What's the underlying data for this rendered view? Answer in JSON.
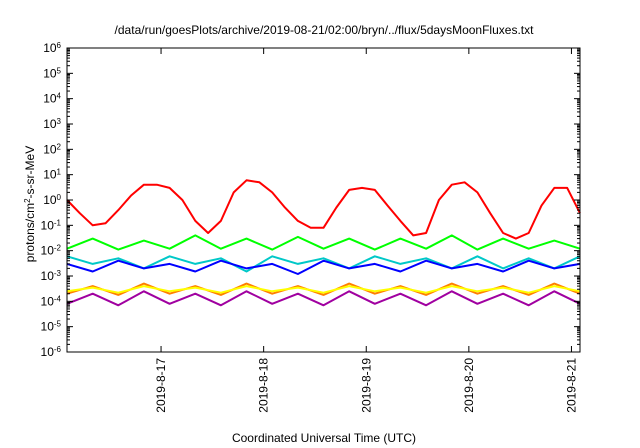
{
  "chart_data": {
    "type": "line",
    "title": "/data/run/goesPlots/archive/2019-08-21/02:00/bryn/../flux/5daysMoonFluxes.txt",
    "xlabel": "Coordinated Universal Time (UTC)",
    "ylabel_prefix": "protons/cm",
    "ylabel_sup": "2",
    "ylabel_suffix": "-s-sr-MeV",
    "yscale": "log",
    "ylim": [
      1e-06,
      1000000.0
    ],
    "xlim": [
      "2019-08-16T02:00",
      "2019-08-21T02:00"
    ],
    "y_ticks": [
      {
        "value": 1e-06,
        "base": "10",
        "exp": "-6"
      },
      {
        "value": 1e-05,
        "base": "10",
        "exp": "-5"
      },
      {
        "value": 0.0001,
        "base": "10",
        "exp": "-4"
      },
      {
        "value": 0.001,
        "base": "10",
        "exp": "-3"
      },
      {
        "value": 0.01,
        "base": "10",
        "exp": "-2"
      },
      {
        "value": 0.1,
        "base": "10",
        "exp": "-1"
      },
      {
        "value": 1.0,
        "base": "10",
        "exp": "0"
      },
      {
        "value": 10.0,
        "base": "10",
        "exp": "1"
      },
      {
        "value": 100.0,
        "base": "10",
        "exp": "2"
      },
      {
        "value": 1000.0,
        "base": "10",
        "exp": "3"
      },
      {
        "value": 10000.0,
        "base": "10",
        "exp": "4"
      },
      {
        "value": 100000.0,
        "base": "10",
        "exp": "5"
      },
      {
        "value": 1000000.0,
        "base": "10",
        "exp": "6"
      }
    ],
    "x_ticks": [
      {
        "value": "2019-08-17T00:00",
        "label": "2019-8-17"
      },
      {
        "value": "2019-08-18T00:00",
        "label": "2019-8-18"
      },
      {
        "value": "2019-08-19T00:00",
        "label": "2019-8-19"
      },
      {
        "value": "2019-08-20T00:00",
        "label": "2019-8-20"
      },
      {
        "value": "2019-08-21T00:00",
        "label": "2019-8-21"
      }
    ],
    "grid": false,
    "legend": "none",
    "series": [
      {
        "color": "#ff0000",
        "x": [
          "2019-08-16T02:00",
          "2019-08-16T05:00",
          "2019-08-16T08:00",
          "2019-08-16T11:00",
          "2019-08-16T14:00",
          "2019-08-16T17:00",
          "2019-08-16T20:00",
          "2019-08-16T23:00",
          "2019-08-17T02:00",
          "2019-08-17T05:00",
          "2019-08-17T08:00",
          "2019-08-17T11:00",
          "2019-08-17T14:00",
          "2019-08-17T17:00",
          "2019-08-17T20:00",
          "2019-08-17T23:00",
          "2019-08-18T02:00",
          "2019-08-18T05:00",
          "2019-08-18T08:00",
          "2019-08-18T11:00",
          "2019-08-18T14:00",
          "2019-08-18T17:00",
          "2019-08-18T20:00",
          "2019-08-18T23:00",
          "2019-08-19T02:00",
          "2019-08-19T05:00",
          "2019-08-19T08:00",
          "2019-08-19T11:00",
          "2019-08-19T14:00",
          "2019-08-19T17:00",
          "2019-08-19T20:00",
          "2019-08-19T23:00",
          "2019-08-20T02:00",
          "2019-08-20T05:00",
          "2019-08-20T08:00",
          "2019-08-20T11:00",
          "2019-08-20T14:00",
          "2019-08-20T17:00",
          "2019-08-20T20:00",
          "2019-08-20T23:00",
          "2019-08-21T02:00"
        ],
        "values": [
          1.0,
          0.3,
          0.1,
          0.12,
          0.4,
          1.5,
          4,
          4,
          3,
          1,
          0.15,
          0.05,
          0.15,
          2,
          6,
          5,
          2,
          0.5,
          0.15,
          0.08,
          0.08,
          0.5,
          2.5,
          3,
          2.5,
          0.6,
          0.15,
          0.04,
          0.05,
          1,
          4,
          5,
          2,
          0.3,
          0.05,
          0.03,
          0.05,
          0.6,
          3,
          3,
          0.3
        ]
      },
      {
        "color": "#00ff00",
        "x": [
          "2019-08-16T02:00",
          "2019-08-16T08:00",
          "2019-08-16T14:00",
          "2019-08-16T20:00",
          "2019-08-17T02:00",
          "2019-08-17T08:00",
          "2019-08-17T14:00",
          "2019-08-17T20:00",
          "2019-08-18T02:00",
          "2019-08-18T08:00",
          "2019-08-18T14:00",
          "2019-08-18T20:00",
          "2019-08-19T02:00",
          "2019-08-19T08:00",
          "2019-08-19T14:00",
          "2019-08-19T20:00",
          "2019-08-20T02:00",
          "2019-08-20T08:00",
          "2019-08-20T14:00",
          "2019-08-20T20:00",
          "2019-08-21T02:00"
        ],
        "values": [
          0.012,
          0.03,
          0.011,
          0.025,
          0.012,
          0.04,
          0.012,
          0.03,
          0.011,
          0.035,
          0.012,
          0.03,
          0.011,
          0.03,
          0.012,
          0.04,
          0.011,
          0.03,
          0.012,
          0.025,
          0.012
        ]
      },
      {
        "color": "#00c8c8",
        "x": [
          "2019-08-16T02:00",
          "2019-08-16T08:00",
          "2019-08-16T14:00",
          "2019-08-16T20:00",
          "2019-08-17T02:00",
          "2019-08-17T08:00",
          "2019-08-17T14:00",
          "2019-08-17T20:00",
          "2019-08-18T02:00",
          "2019-08-18T08:00",
          "2019-08-18T14:00",
          "2019-08-18T20:00",
          "2019-08-19T02:00",
          "2019-08-19T08:00",
          "2019-08-19T14:00",
          "2019-08-19T20:00",
          "2019-08-20T02:00",
          "2019-08-20T08:00",
          "2019-08-20T14:00",
          "2019-08-20T20:00",
          "2019-08-21T02:00"
        ],
        "values": [
          0.006,
          0.003,
          0.005,
          0.002,
          0.006,
          0.003,
          0.005,
          0.0015,
          0.006,
          0.003,
          0.005,
          0.002,
          0.006,
          0.003,
          0.005,
          0.002,
          0.006,
          0.002,
          0.005,
          0.002,
          0.006
        ]
      },
      {
        "color": "#0000ff",
        "x": [
          "2019-08-16T02:00",
          "2019-08-16T08:00",
          "2019-08-16T14:00",
          "2019-08-16T20:00",
          "2019-08-17T02:00",
          "2019-08-17T08:00",
          "2019-08-17T14:00",
          "2019-08-17T20:00",
          "2019-08-18T02:00",
          "2019-08-18T08:00",
          "2019-08-18T14:00",
          "2019-08-18T20:00",
          "2019-08-19T02:00",
          "2019-08-19T08:00",
          "2019-08-19T14:00",
          "2019-08-19T20:00",
          "2019-08-20T02:00",
          "2019-08-20T08:00",
          "2019-08-20T14:00",
          "2019-08-20T20:00",
          "2019-08-21T02:00"
        ],
        "values": [
          0.003,
          0.0015,
          0.004,
          0.002,
          0.003,
          0.0015,
          0.004,
          0.002,
          0.003,
          0.0012,
          0.004,
          0.002,
          0.003,
          0.0015,
          0.004,
          0.002,
          0.003,
          0.0015,
          0.004,
          0.002,
          0.003
        ]
      },
      {
        "color": "#ff8000",
        "x": [
          "2019-08-16T02:00",
          "2019-08-16T08:00",
          "2019-08-16T14:00",
          "2019-08-16T20:00",
          "2019-08-17T02:00",
          "2019-08-17T08:00",
          "2019-08-17T14:00",
          "2019-08-17T20:00",
          "2019-08-18T02:00",
          "2019-08-18T08:00",
          "2019-08-18T14:00",
          "2019-08-18T20:00",
          "2019-08-19T02:00",
          "2019-08-19T08:00",
          "2019-08-19T14:00",
          "2019-08-19T20:00",
          "2019-08-20T02:00",
          "2019-08-20T08:00",
          "2019-08-20T14:00",
          "2019-08-20T20:00",
          "2019-08-21T02:00"
        ],
        "values": [
          0.0002,
          0.0004,
          0.00018,
          0.0005,
          0.0002,
          0.0004,
          0.00018,
          0.0005,
          0.0002,
          0.0004,
          0.00018,
          0.0005,
          0.0002,
          0.0004,
          0.00018,
          0.0005,
          0.0002,
          0.0004,
          0.00018,
          0.0005,
          0.0002
        ]
      },
      {
        "color": "#ffff00",
        "x": [
          "2019-08-16T02:00",
          "2019-08-16T08:00",
          "2019-08-16T14:00",
          "2019-08-16T20:00",
          "2019-08-17T02:00",
          "2019-08-17T08:00",
          "2019-08-17T14:00",
          "2019-08-17T20:00",
          "2019-08-18T02:00",
          "2019-08-18T08:00",
          "2019-08-18T14:00",
          "2019-08-18T20:00",
          "2019-08-19T02:00",
          "2019-08-19T08:00",
          "2019-08-19T14:00",
          "2019-08-19T20:00",
          "2019-08-20T02:00",
          "2019-08-20T08:00",
          "2019-08-20T14:00",
          "2019-08-20T20:00",
          "2019-08-21T02:00"
        ],
        "values": [
          0.00025,
          0.00035,
          0.00022,
          0.0004,
          0.00025,
          0.00035,
          0.00022,
          0.0004,
          0.00025,
          0.00035,
          0.00022,
          0.0004,
          0.00025,
          0.00035,
          0.00022,
          0.0004,
          0.00025,
          0.00035,
          0.00022,
          0.0004,
          0.00025
        ]
      },
      {
        "color": "#a000a0",
        "x": [
          "2019-08-16T02:00",
          "2019-08-16T08:00",
          "2019-08-16T14:00",
          "2019-08-16T20:00",
          "2019-08-17T02:00",
          "2019-08-17T08:00",
          "2019-08-17T14:00",
          "2019-08-17T20:00",
          "2019-08-18T02:00",
          "2019-08-18T08:00",
          "2019-08-18T14:00",
          "2019-08-18T20:00",
          "2019-08-19T02:00",
          "2019-08-19T08:00",
          "2019-08-19T14:00",
          "2019-08-19T20:00",
          "2019-08-20T02:00",
          "2019-08-20T08:00",
          "2019-08-20T14:00",
          "2019-08-20T20:00",
          "2019-08-21T02:00"
        ],
        "values": [
          8e-05,
          0.0002,
          7e-05,
          0.00025,
          8e-05,
          0.0002,
          7e-05,
          0.00025,
          8e-05,
          0.0002,
          7e-05,
          0.00025,
          8e-05,
          0.0002,
          7e-05,
          0.00025,
          8e-05,
          0.0002,
          7e-05,
          0.00025,
          8e-05
        ]
      }
    ]
  }
}
